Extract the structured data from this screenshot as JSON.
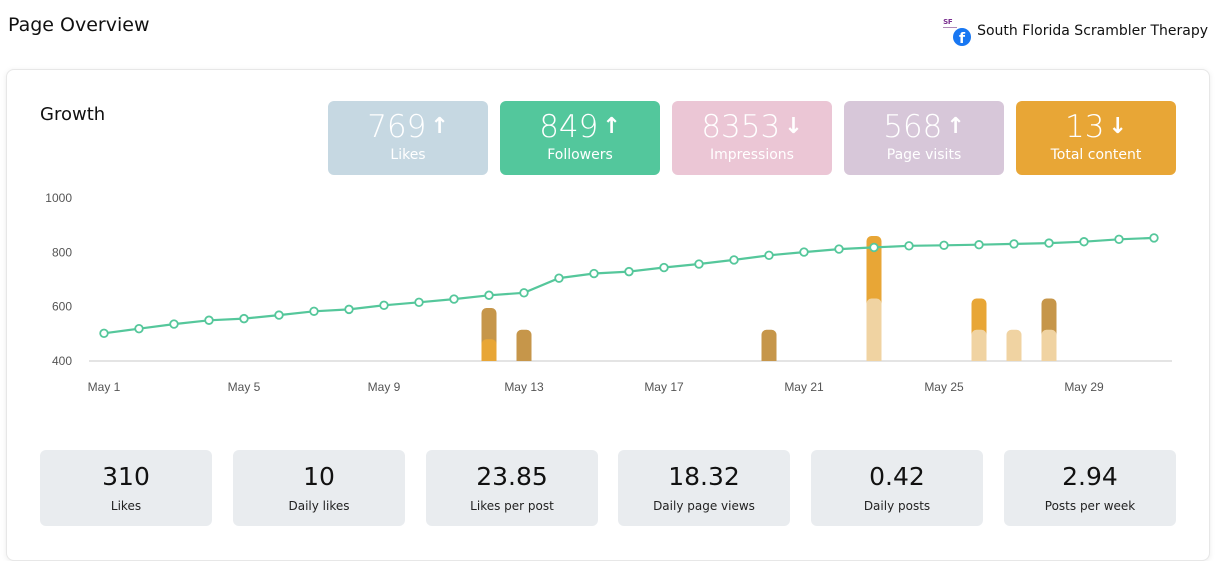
{
  "page": {
    "title": "Page Overview"
  },
  "account": {
    "name": "South Florida Scrambler Therapy",
    "logo_text": "SF",
    "platform_icon": "facebook-icon"
  },
  "growth": {
    "title": "Growth",
    "tiles": [
      {
        "value": "769",
        "label": "Likes",
        "trend": "up",
        "arrow": "↑",
        "color": "#c6d8e2"
      },
      {
        "value": "849",
        "label": "Followers",
        "trend": "up",
        "arrow": "↑",
        "color": "#53c79c"
      },
      {
        "value": "8353",
        "label": "Impressions",
        "trend": "down",
        "arrow": "↓",
        "color": "#ebc6d5"
      },
      {
        "value": "568",
        "label": "Page visits",
        "trend": "up",
        "arrow": "↑",
        "color": "#d7c7d9"
      },
      {
        "value": "13",
        "label": "Total content",
        "trend": "down",
        "arrow": "↓",
        "color": "#e8a636"
      }
    ]
  },
  "chart_data": {
    "type": "line",
    "y_ticks": [
      "1000",
      "800",
      "600",
      "400"
    ],
    "ylim": [
      400,
      1000
    ],
    "x_tick_labels": [
      "May 1",
      "May 5",
      "May 9",
      "May 13",
      "May 17",
      "May 21",
      "May 25",
      "May 29"
    ],
    "x_tick_days": [
      1,
      5,
      9,
      13,
      17,
      21,
      25,
      29
    ],
    "followers_line": {
      "color": "#55c79b",
      "days": [
        1,
        2,
        3,
        4,
        5,
        6,
        7,
        8,
        9,
        10,
        11,
        12,
        13,
        14,
        15,
        16,
        17,
        18,
        19,
        20,
        21,
        22,
        23,
        24,
        25,
        26,
        27,
        28,
        29,
        30,
        31
      ],
      "values": [
        502,
        519,
        536,
        550,
        556,
        569,
        583,
        590,
        605,
        616,
        628,
        642,
        651,
        705,
        722,
        729,
        744,
        757,
        772,
        789,
        801,
        812,
        818,
        824,
        826,
        828,
        831,
        834,
        839,
        848,
        853
      ]
    },
    "bars": [
      {
        "day": 12,
        "segments": [
          {
            "value": 80,
            "color": "#e8a636"
          },
          {
            "value": 115,
            "color": "#c6964a"
          }
        ]
      },
      {
        "day": 13,
        "segments": [
          {
            "value": 115,
            "color": "#c6964a"
          }
        ]
      },
      {
        "day": 20,
        "segments": [
          {
            "value": 115,
            "color": "#c6964a"
          }
        ]
      },
      {
        "day": 23,
        "segments": [
          {
            "value": 230,
            "color": "#f0d3a2"
          },
          {
            "value": 230,
            "color": "#e8a636"
          }
        ]
      },
      {
        "day": 26,
        "segments": [
          {
            "value": 115,
            "color": "#f0d3a2"
          },
          {
            "value": 115,
            "color": "#e8a636"
          }
        ]
      },
      {
        "day": 27,
        "segments": [
          {
            "value": 115,
            "color": "#f0d3a2"
          }
        ]
      },
      {
        "day": 28,
        "segments": [
          {
            "value": 115,
            "color": "#f0d3a2"
          },
          {
            "value": 115,
            "color": "#c6964a"
          }
        ]
      }
    ]
  },
  "metrics": [
    {
      "value": "310",
      "label": "Likes"
    },
    {
      "value": "10",
      "label": "Daily likes"
    },
    {
      "value": "23.85",
      "label": "Likes per post"
    },
    {
      "value": "18.32",
      "label": "Daily page views"
    },
    {
      "value": "0.42",
      "label": "Daily posts"
    },
    {
      "value": "2.94",
      "label": "Posts per week"
    }
  ]
}
